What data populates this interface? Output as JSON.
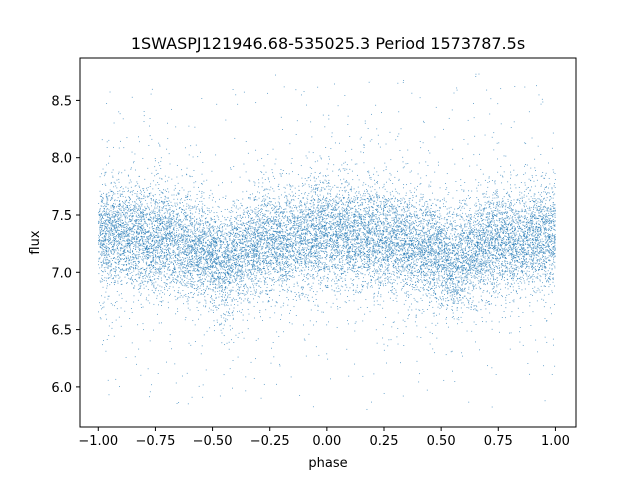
{
  "chart_data": {
    "type": "scatter",
    "title": "1SWASPJ121946.68-535025.3 Period 1573787.5s",
    "xlabel": "phase",
    "ylabel": "flux",
    "xlim": [
      -1.08,
      1.09
    ],
    "ylim": [
      5.65,
      8.87
    ],
    "grid": false,
    "legend": "none",
    "color": "#1f77b4",
    "x_ticks": [
      -1.0,
      -0.75,
      -0.5,
      -0.25,
      0.0,
      0.25,
      0.5,
      0.75,
      1.0
    ],
    "x_tick_labels": [
      "−1.00",
      "−0.75",
      "−0.50",
      "−0.25",
      "0.00",
      "0.25",
      "0.50",
      "0.75",
      "1.00"
    ],
    "y_ticks": [
      6.0,
      6.5,
      7.0,
      7.5,
      8.0,
      8.5
    ],
    "y_tick_labels": [
      "6.0",
      "6.5",
      "7.0",
      "7.5",
      "8.0",
      "8.5"
    ],
    "series": [
      {
        "phase_range": [
          -1.0,
          1.0
        ],
        "n_points_approx": 16000,
        "flux_center": [
          [
            -1.0,
            7.32
          ],
          [
            -0.9,
            7.35
          ],
          [
            -0.8,
            7.3
          ],
          [
            -0.7,
            7.28
          ],
          [
            -0.6,
            7.22
          ],
          [
            -0.5,
            7.15
          ],
          [
            -0.45,
            7.05
          ],
          [
            -0.4,
            7.15
          ],
          [
            -0.3,
            7.25
          ],
          [
            -0.2,
            7.28
          ],
          [
            -0.1,
            7.3
          ],
          [
            0.0,
            7.35
          ],
          [
            0.1,
            7.32
          ],
          [
            0.2,
            7.3
          ],
          [
            0.3,
            7.28
          ],
          [
            0.4,
            7.22
          ],
          [
            0.5,
            7.15
          ],
          [
            0.55,
            7.05
          ],
          [
            0.6,
            7.15
          ],
          [
            0.7,
            7.25
          ],
          [
            0.8,
            7.28
          ],
          [
            0.9,
            7.3
          ],
          [
            1.0,
            7.33
          ]
        ],
        "flux_core_spread": 0.22,
        "flux_outlier_range": [
          5.8,
          8.75
        ]
      }
    ]
  }
}
